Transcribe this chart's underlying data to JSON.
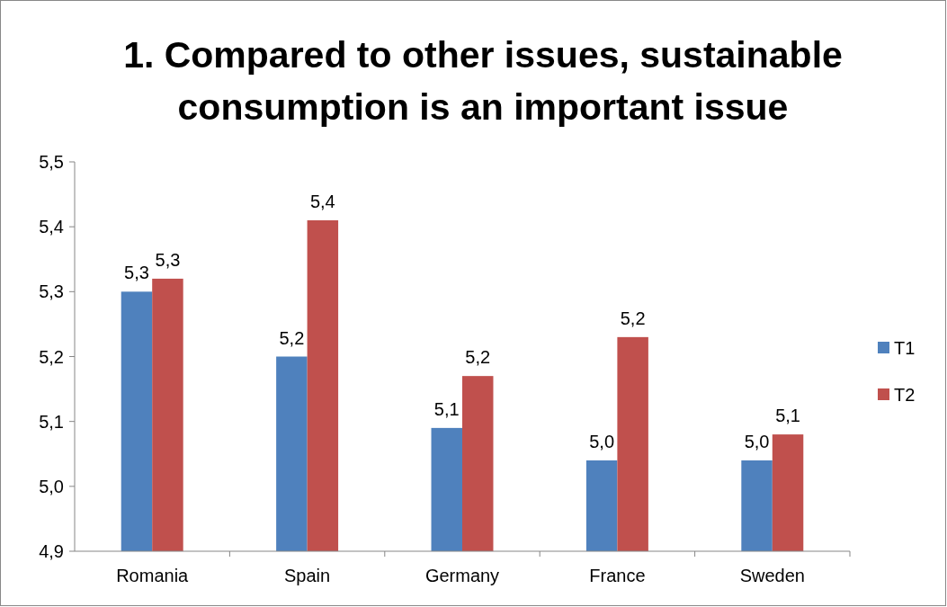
{
  "chart_data": {
    "type": "bar",
    "title": "1. Compared to other issues, sustainable consumption is an important issue",
    "categories": [
      "Romania",
      "Spain",
      "Germany",
      "France",
      "Sweden"
    ],
    "series": [
      {
        "name": "T1",
        "color": "#4f81bd",
        "values": [
          5.3,
          5.2,
          5.09,
          5.04,
          5.04
        ],
        "value_labels": [
          "5,3",
          "5,2",
          "5,1",
          "5,0",
          "5,0"
        ]
      },
      {
        "name": "T2",
        "color": "#c0504d",
        "values": [
          5.32,
          5.41,
          5.17,
          5.23,
          5.08
        ],
        "value_labels": [
          "5,3",
          "5,4",
          "5,2",
          "5,2",
          "5,1"
        ]
      }
    ],
    "ylim": [
      4.9,
      5.5
    ],
    "yticks": [
      {
        "value": 4.9,
        "label": "4,9"
      },
      {
        "value": 5.0,
        "label": "5,0"
      },
      {
        "value": 5.1,
        "label": "5,1"
      },
      {
        "value": 5.2,
        "label": "5,2"
      },
      {
        "value": 5.3,
        "label": "5,3"
      },
      {
        "value": 5.4,
        "label": "5,4"
      },
      {
        "value": 5.5,
        "label": "5,5"
      }
    ],
    "grid": false,
    "legend": "right"
  }
}
